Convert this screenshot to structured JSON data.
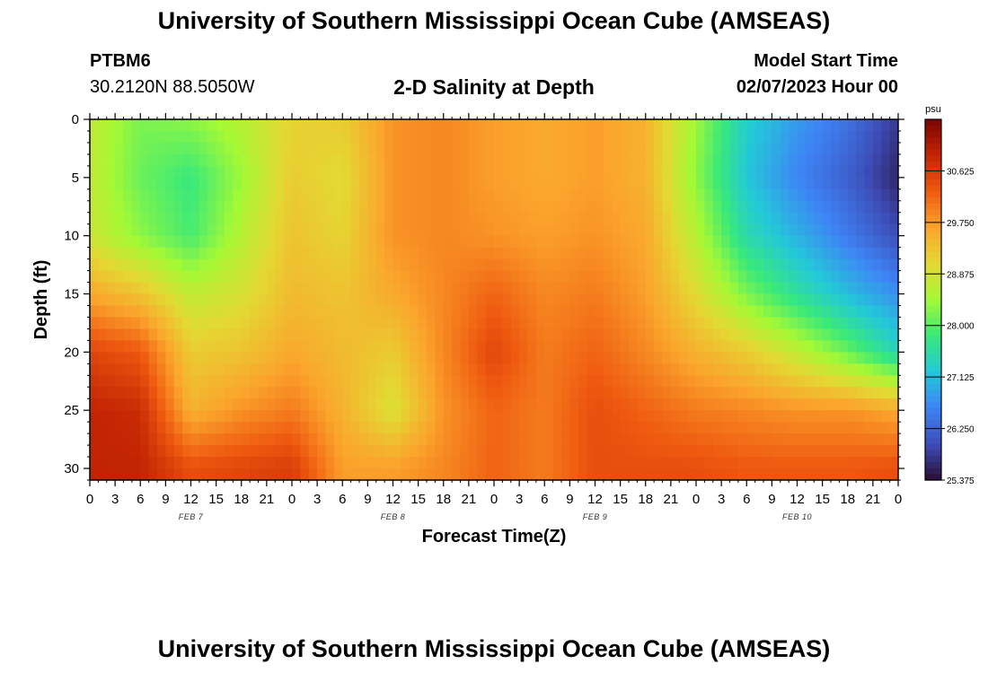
{
  "header": {
    "title": "University of Southern Mississippi Ocean Cube (AMSEAS)",
    "station": "PTBM6",
    "coordinates": "30.2120N  88.5050W",
    "chart_title": "2-D Salinity at Depth",
    "start_label": "Model Start Time",
    "start_value": "02/07/2023 Hour 00"
  },
  "footer": {
    "title": "University of Southern Mississippi Ocean Cube (AMSEAS)"
  },
  "chart_data": {
    "type": "heatmap",
    "title": "2-D Salinity at Depth",
    "xlabel": "Forecast Time(Z)",
    "ylabel": "Depth (ft)",
    "x_hours": [
      0,
      6,
      12,
      18,
      24,
      30,
      36,
      42,
      48,
      54,
      60,
      66,
      72,
      78,
      84,
      90,
      96
    ],
    "y_depths": [
      0,
      5,
      10,
      15,
      20,
      25,
      30
    ],
    "values": [
      [
        28.7,
        28.2,
        28.3,
        28.6,
        29.1,
        29.2,
        29.8,
        29.9,
        29.7,
        29.6,
        29.7,
        29.5,
        28.4,
        27.3,
        26.8,
        26.4,
        25.8
      ],
      [
        28.7,
        28.1,
        27.8,
        28.4,
        29.2,
        29.0,
        29.8,
        29.9,
        29.7,
        29.6,
        29.7,
        29.5,
        28.3,
        27.2,
        26.6,
        26.2,
        25.6
      ],
      [
        28.8,
        28.3,
        27.9,
        28.6,
        29.3,
        29.1,
        29.8,
        29.9,
        29.8,
        29.7,
        29.8,
        29.6,
        28.6,
        27.5,
        27.0,
        26.5,
        26.0
      ],
      [
        29.6,
        29.3,
        28.7,
        28.9,
        29.4,
        29.3,
        29.6,
        29.9,
        30.2,
        29.9,
        30.0,
        29.7,
        29.0,
        28.2,
        27.6,
        27.1,
        26.7
      ],
      [
        30.5,
        30.3,
        29.2,
        29.3,
        29.6,
        29.4,
        29.2,
        29.9,
        30.5,
        30.0,
        30.2,
        29.9,
        29.5,
        29.2,
        28.7,
        28.1,
        27.4
      ],
      [
        30.9,
        30.8,
        29.5,
        29.8,
        30.0,
        29.5,
        28.9,
        29.8,
        30.2,
        30.0,
        30.4,
        30.2,
        30.0,
        29.9,
        29.8,
        29.8,
        29.6
      ],
      [
        30.9,
        30.9,
        30.4,
        30.5,
        30.6,
        29.7,
        29.7,
        29.9,
        30.2,
        30.0,
        30.4,
        30.4,
        30.4,
        30.3,
        30.3,
        30.3,
        30.4
      ]
    ],
    "xlim": [
      0,
      96
    ],
    "ylim": [
      0,
      31
    ],
    "y_reversed": true,
    "x_tick_labels": [
      "0",
      "3",
      "6",
      "9",
      "12",
      "15",
      "18",
      "21",
      "0",
      "3",
      "6",
      "9",
      "12",
      "15",
      "18",
      "21",
      "0",
      "3",
      "6",
      "9",
      "12",
      "15",
      "18",
      "21",
      "0",
      "3",
      "6",
      "9",
      "12",
      "15",
      "18",
      "21",
      "0"
    ],
    "y_tick_labels": [
      "0",
      "5",
      "10",
      "15",
      "20",
      "25",
      "30"
    ],
    "date_labels": [
      {
        "text": "FEB 7",
        "hour": 12
      },
      {
        "text": "FEB 8",
        "hour": 36
      },
      {
        "text": "FEB 9",
        "hour": 60
      },
      {
        "text": "FEB 10",
        "hour": 84
      }
    ],
    "colorbar": {
      "unit": "psu",
      "min": 25.375,
      "max": 31.5,
      "tick_labels": [
        "30.625",
        "29.750",
        "28.875",
        "28.000",
        "27.125",
        "26.250",
        "25.375"
      ],
      "colors": [
        "#2b0e34",
        "#3d4db8",
        "#3e84f5",
        "#23c9d8",
        "#39e97a",
        "#a4f935",
        "#e4d833",
        "#fba42c",
        "#ef5a10",
        "#c32503",
        "#7a0403"
      ]
    }
  }
}
